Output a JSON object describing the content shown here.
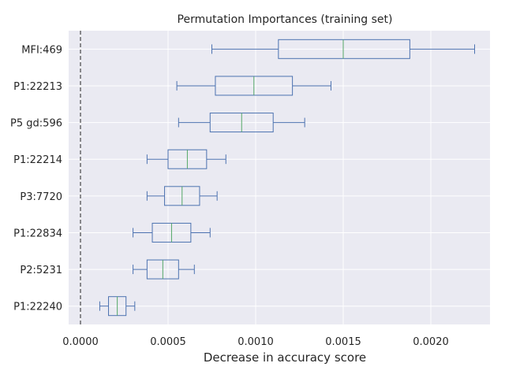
{
  "chart_data": {
    "type": "box",
    "title": "Permutation Importances (training set)",
    "xlabel": "Decrease in accuracy score",
    "ylabel": "",
    "xlim": [
      0,
      0.00236
    ],
    "xticks": [
      0,
      0.0005,
      0.001,
      0.0015,
      0.002
    ],
    "xtick_labels": [
      "0.0000",
      "0.0005",
      "0.0010",
      "0.0015",
      "0.0020"
    ],
    "grid": true,
    "reference_line": {
      "x": 0,
      "style": "dashed"
    },
    "colors": {
      "background": "#eaeaf2",
      "grid": "#ffffff",
      "box": "#4c72b0",
      "median": "#55a868",
      "reference_line": "#262626"
    },
    "categories": [
      "MFI:469",
      "P1:22213",
      "P5 gd:596",
      "P1:22214",
      "P3:7720",
      "P1:22834",
      "P2:5231",
      "P1:22240"
    ],
    "boxes": [
      {
        "label": "MFI:469",
        "whisker_low": 0.00075,
        "q1": 0.00113,
        "median": 0.0015,
        "q3": 0.00188,
        "whisker_high": 0.00225
      },
      {
        "label": "P1:22213",
        "whisker_low": 0.00055,
        "q1": 0.00077,
        "median": 0.00099,
        "q3": 0.00121,
        "whisker_high": 0.00143
      },
      {
        "label": "P5 gd:596",
        "whisker_low": 0.00056,
        "q1": 0.00074,
        "median": 0.00092,
        "q3": 0.0011,
        "whisker_high": 0.00128
      },
      {
        "label": "P1:22214",
        "whisker_low": 0.00038,
        "q1": 0.0005,
        "median": 0.00061,
        "q3": 0.00072,
        "whisker_high": 0.00083
      },
      {
        "label": "P3:7720",
        "whisker_low": 0.00038,
        "q1": 0.00048,
        "median": 0.00058,
        "q3": 0.00068,
        "whisker_high": 0.00078
      },
      {
        "label": "P1:22834",
        "whisker_low": 0.0003,
        "q1": 0.00041,
        "median": 0.00052,
        "q3": 0.00063,
        "whisker_high": 0.00074
      },
      {
        "label": "P2:5231",
        "whisker_low": 0.0003,
        "q1": 0.00038,
        "median": 0.00047,
        "q3": 0.00056,
        "whisker_high": 0.00065
      },
      {
        "label": "P1:22240",
        "whisker_low": 0.00011,
        "q1": 0.00016,
        "median": 0.00021,
        "q3": 0.00026,
        "whisker_high": 0.00031
      }
    ]
  }
}
